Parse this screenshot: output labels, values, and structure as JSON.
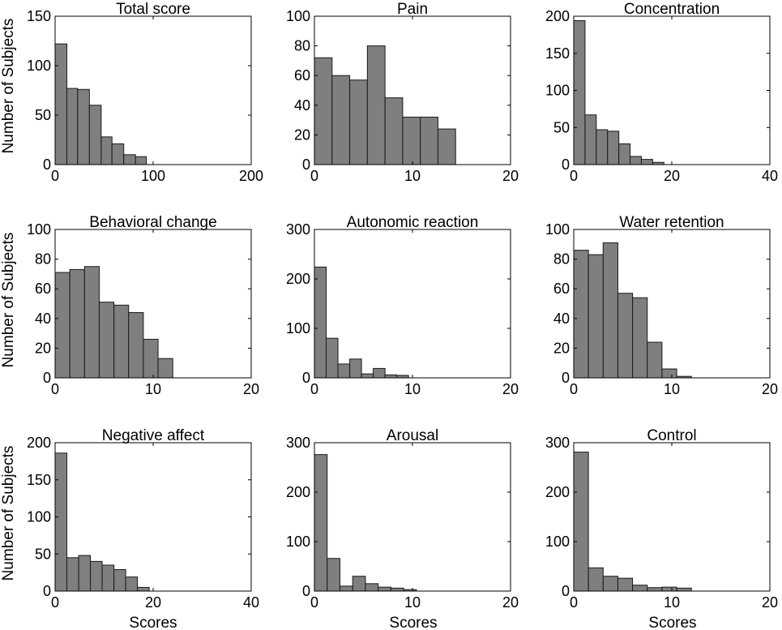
{
  "figure": {
    "ylabel": "Number of Subjects",
    "xlabel": "Scores",
    "bar_color": "#7f7f7f",
    "edge_color": "#1a1a1a"
  },
  "chart_data": [
    {
      "type": "bar",
      "title": "Total score",
      "xlim": [
        0,
        200
      ],
      "ylim": [
        0,
        150
      ],
      "xticks": [
        "0",
        "100",
        "200"
      ],
      "yticks": [
        "0",
        "50",
        "100",
        "150"
      ],
      "bins": [
        [
          0,
          12
        ],
        [
          12,
          23
        ],
        [
          23,
          35
        ],
        [
          35,
          47
        ],
        [
          47,
          58
        ],
        [
          58,
          70
        ],
        [
          70,
          82
        ],
        [
          82,
          93
        ],
        [
          93,
          105
        ],
        [
          105,
          117
        ]
      ],
      "values": [
        122,
        77,
        76,
        60,
        28,
        21,
        10,
        8,
        0,
        0
      ]
    },
    {
      "type": "bar",
      "title": "Pain",
      "xlim": [
        0,
        20
      ],
      "ylim": [
        0,
        100
      ],
      "xticks": [
        "0",
        "10",
        "20"
      ],
      "yticks": [
        "0",
        "20",
        "40",
        "60",
        "80",
        "100"
      ],
      "bins": [
        [
          0,
          1.8
        ],
        [
          1.8,
          3.6
        ],
        [
          3.6,
          5.4
        ],
        [
          5.4,
          7.2
        ],
        [
          7.2,
          9
        ],
        [
          9,
          10.8
        ],
        [
          10.8,
          12.6
        ],
        [
          12.6,
          14.4
        ],
        [
          14.4,
          16.2
        ],
        [
          16.2,
          18
        ]
      ],
      "values": [
        72,
        60,
        57,
        80,
        45,
        32,
        32,
        24,
        0,
        0
      ]
    },
    {
      "type": "bar",
      "title": "Concentration",
      "xlim": [
        0,
        40
      ],
      "ylim": [
        0,
        200
      ],
      "xticks": [
        "0",
        "20",
        "40"
      ],
      "yticks": [
        "0",
        "50",
        "100",
        "150",
        "200"
      ],
      "bins": [
        [
          0,
          2.3
        ],
        [
          2.3,
          4.6
        ],
        [
          4.6,
          6.9
        ],
        [
          6.9,
          9.2
        ],
        [
          9.2,
          11.5
        ],
        [
          11.5,
          13.8
        ],
        [
          13.8,
          16.1
        ],
        [
          16.1,
          18.4
        ],
        [
          18.4,
          20.7
        ],
        [
          20.7,
          23
        ]
      ],
      "values": [
        194,
        67,
        47,
        45,
        28,
        11,
        7,
        3,
        0,
        0
      ]
    },
    {
      "type": "bar",
      "title": "Behavioral change",
      "xlim": [
        0,
        20
      ],
      "ylim": [
        0,
        100
      ],
      "xticks": [
        "0",
        "10",
        "20"
      ],
      "yticks": [
        "0",
        "20",
        "40",
        "60",
        "80",
        "100"
      ],
      "bins": [
        [
          0,
          1.5
        ],
        [
          1.5,
          3
        ],
        [
          3,
          4.5
        ],
        [
          4.5,
          6
        ],
        [
          6,
          7.5
        ],
        [
          7.5,
          9
        ],
        [
          9,
          10.5
        ],
        [
          10.5,
          12
        ],
        [
          12,
          13.5
        ],
        [
          13.5,
          15
        ]
      ],
      "values": [
        71,
        73,
        75,
        51,
        49,
        44,
        26,
        13,
        0,
        0
      ]
    },
    {
      "type": "bar",
      "title": "Autonomic reaction",
      "xlim": [
        0,
        20
      ],
      "ylim": [
        0,
        300
      ],
      "xticks": [
        "0",
        "10",
        "20"
      ],
      "yticks": [
        "0",
        "100",
        "200",
        "300"
      ],
      "bins": [
        [
          0,
          1.2
        ],
        [
          1.2,
          2.4
        ],
        [
          2.4,
          3.6
        ],
        [
          3.6,
          4.8
        ],
        [
          4.8,
          6
        ],
        [
          6,
          7.2
        ],
        [
          7.2,
          8.4
        ],
        [
          8.4,
          9.6
        ],
        [
          9.6,
          10.8
        ],
        [
          10.8,
          12
        ]
      ],
      "values": [
        224,
        80,
        28,
        38,
        8,
        19,
        6,
        5,
        0,
        0
      ]
    },
    {
      "type": "bar",
      "title": "Water retention",
      "xlim": [
        0,
        20
      ],
      "ylim": [
        0,
        100
      ],
      "xticks": [
        "0",
        "10",
        "20"
      ],
      "yticks": [
        "0",
        "20",
        "40",
        "60",
        "80",
        "100"
      ],
      "bins": [
        [
          0,
          1.5
        ],
        [
          1.5,
          3
        ],
        [
          3,
          4.5
        ],
        [
          4.5,
          6
        ],
        [
          6,
          7.5
        ],
        [
          7.5,
          9
        ],
        [
          9,
          10.5
        ],
        [
          10.5,
          12
        ],
        [
          12,
          13.5
        ],
        [
          13.5,
          15
        ]
      ],
      "values": [
        86,
        83,
        91,
        57,
        54,
        24,
        6,
        1,
        0,
        0
      ]
    },
    {
      "type": "bar",
      "title": "Negative affect",
      "xlim": [
        0,
        40
      ],
      "ylim": [
        0,
        200
      ],
      "xticks": [
        "0",
        "20",
        "40"
      ],
      "yticks": [
        "0",
        "50",
        "100",
        "150",
        "200"
      ],
      "bins": [
        [
          0,
          2.4
        ],
        [
          2.4,
          4.8
        ],
        [
          4.8,
          7.2
        ],
        [
          7.2,
          9.6
        ],
        [
          9.6,
          12
        ],
        [
          12,
          14.4
        ],
        [
          14.4,
          16.8
        ],
        [
          16.8,
          19.2
        ],
        [
          19.2,
          21.6
        ],
        [
          21.6,
          24
        ]
      ],
      "values": [
        186,
        45,
        48,
        40,
        35,
        29,
        19,
        5,
        0,
        0
      ]
    },
    {
      "type": "bar",
      "title": "Arousal",
      "xlim": [
        0,
        20
      ],
      "ylim": [
        0,
        300
      ],
      "xticks": [
        "0",
        "10",
        "20"
      ],
      "yticks": [
        "0",
        "100",
        "200",
        "300"
      ],
      "bins": [
        [
          0,
          1.3
        ],
        [
          1.3,
          2.6
        ],
        [
          2.6,
          3.9
        ],
        [
          3.9,
          5.2
        ],
        [
          5.2,
          6.5
        ],
        [
          6.5,
          7.8
        ],
        [
          7.8,
          9.1
        ],
        [
          9.1,
          10.4
        ],
        [
          10.4,
          11.7
        ],
        [
          11.7,
          13
        ]
      ],
      "values": [
        276,
        66,
        10,
        30,
        15,
        8,
        6,
        3,
        0,
        0
      ]
    },
    {
      "type": "bar",
      "title": "Control",
      "xlim": [
        0,
        20
      ],
      "ylim": [
        0,
        300
      ],
      "xticks": [
        "0",
        "10",
        "20"
      ],
      "yticks": [
        "0",
        "100",
        "200",
        "300"
      ],
      "bins": [
        [
          0,
          1.5
        ],
        [
          1.5,
          3
        ],
        [
          3,
          4.5
        ],
        [
          4.5,
          6
        ],
        [
          6,
          7.5
        ],
        [
          7.5,
          9
        ],
        [
          9,
          10.5
        ],
        [
          10.5,
          12
        ],
        [
          12,
          13.5
        ],
        [
          13.5,
          15
        ]
      ],
      "values": [
        281,
        47,
        30,
        26,
        12,
        7,
        8,
        6,
        0,
        0
      ]
    }
  ]
}
